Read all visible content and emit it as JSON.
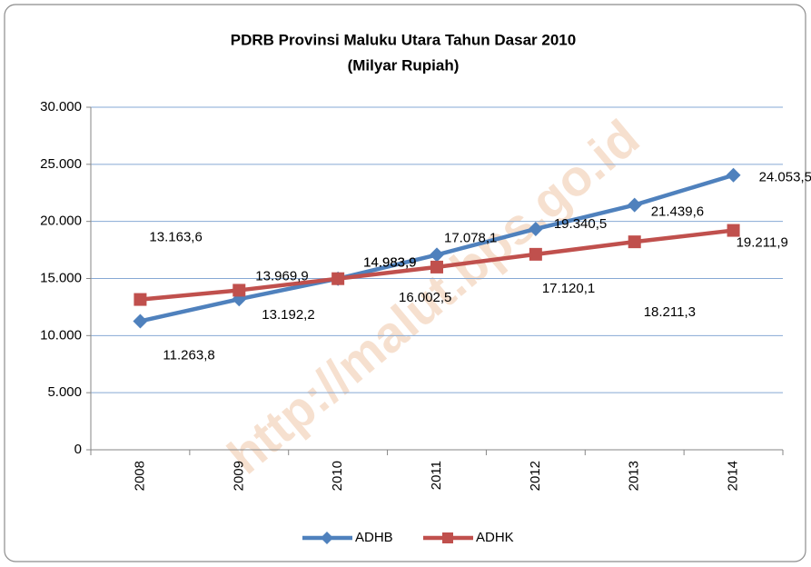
{
  "chart_data": {
    "type": "line",
    "title": "PDRB Provinsi Maluku Utara Tahun Dasar 2010",
    "subtitle": "(Milyar Rupiah)",
    "watermark": "http://malut.bps.go.id",
    "categories": [
      "2008",
      "2009",
      "2010",
      "2011",
      "2012",
      "2013",
      "2014"
    ],
    "series": [
      {
        "name": "ADHB",
        "color": "#4f81bd",
        "values": [
          11263.8,
          13192.2,
          14983.9,
          17078.1,
          19340.5,
          21439.6,
          24053.5
        ],
        "value_labels": [
          "11.263,8",
          "13.192,2",
          "14.983,9",
          "17.078,1",
          "19.340,5",
          "21.439,6",
          "24.053,5"
        ]
      },
      {
        "name": "ADHK",
        "color": "#c0504d",
        "values": [
          13163.6,
          13969.9,
          14983.9,
          16002.5,
          17120.1,
          18211.3,
          19211.9
        ],
        "value_labels": [
          "13.163,6",
          "13.969,9",
          "14.983,9",
          "16.002,5",
          "17.120,1",
          "18.211,3",
          "19.211,9"
        ]
      }
    ],
    "ylim": [
      0,
      30000
    ],
    "yticks": [
      0,
      {
        "value": 5000,
        "label": "5.000"
      },
      {
        "value": 10000,
        "label": "10.000"
      },
      {
        "value": 15000,
        "label": "15.000"
      },
      {
        "value": 20000,
        "label": "20.000"
      },
      {
        "value": 25000,
        "label": "25.000"
      },
      {
        "value": 30000,
        "label": "30.000"
      }
    ],
    "grid": true,
    "legend": "bottom"
  }
}
